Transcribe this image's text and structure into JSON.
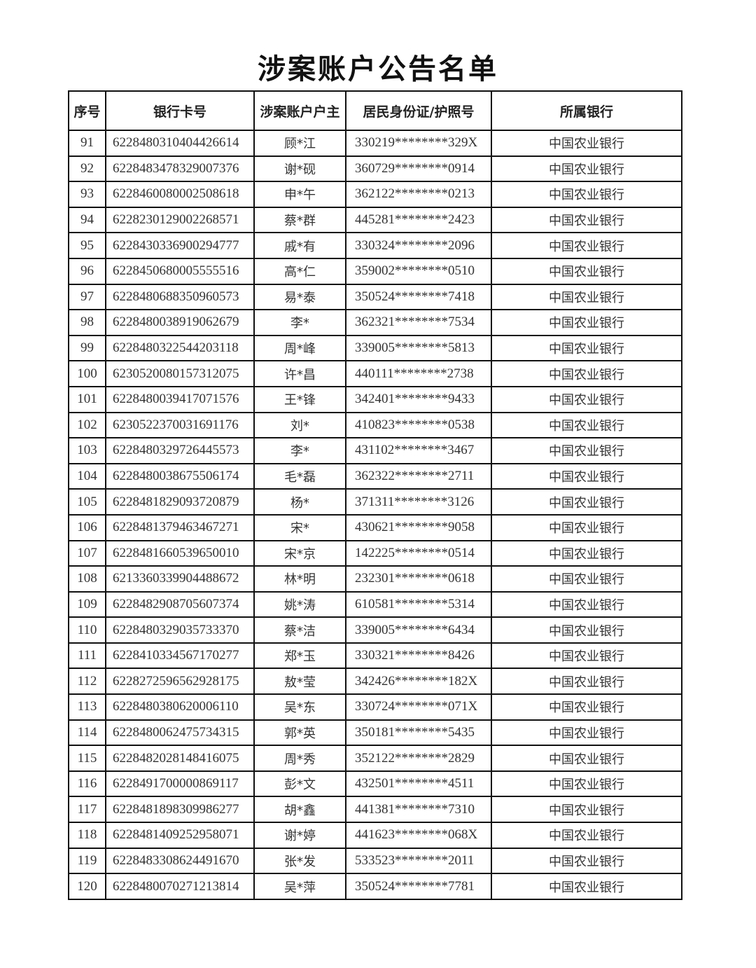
{
  "title": "涉案账户公告名单",
  "table": {
    "headers": [
      "序号",
      "银行卡号",
      "涉案账户户主",
      "居民身份证/护照号",
      "所属银行"
    ],
    "rows": [
      [
        "91",
        "6228480310404426614",
        "顾*江",
        "330219********329X",
        "中国农业银行"
      ],
      [
        "92",
        "6228483478329007376",
        "谢*砚",
        "360729********0914",
        "中国农业银行"
      ],
      [
        "93",
        "6228460080002508618",
        "申*午",
        "362122********0213",
        "中国农业银行"
      ],
      [
        "94",
        "6228230129002268571",
        "蔡*群",
        "445281********2423",
        "中国农业银行"
      ],
      [
        "95",
        "6228430336900294777",
        "戚*有",
        "330324********2096",
        "中国农业银行"
      ],
      [
        "96",
        "6228450680005555516",
        "高*仁",
        "359002********0510",
        "中国农业银行"
      ],
      [
        "97",
        "6228480688350960573",
        "易*泰",
        "350524********7418",
        "中国农业银行"
      ],
      [
        "98",
        "6228480038919062679",
        "李*",
        "362321********7534",
        "中国农业银行"
      ],
      [
        "99",
        "6228480322544203118",
        "周*峰",
        "339005********5813",
        "中国农业银行"
      ],
      [
        "100",
        "6230520080157312075",
        "许*昌",
        "440111********2738",
        "中国农业银行"
      ],
      [
        "101",
        "6228480039417071576",
        "王*锋",
        "342401********9433",
        "中国农业银行"
      ],
      [
        "102",
        "6230522370031691176",
        "刘*",
        "410823********0538",
        "中国农业银行"
      ],
      [
        "103",
        "6228480329726445573",
        "李*",
        "431102********3467",
        "中国农业银行"
      ],
      [
        "104",
        "6228480038675506174",
        "毛*磊",
        "362322********2711",
        "中国农业银行"
      ],
      [
        "105",
        "6228481829093720879",
        "杨*",
        "371311********3126",
        "中国农业银行"
      ],
      [
        "106",
        "6228481379463467271",
        "宋*",
        "430621********9058",
        "中国农业银行"
      ],
      [
        "107",
        "6228481660539650010",
        "宋*京",
        "142225********0514",
        "中国农业银行"
      ],
      [
        "108",
        "6213360339904488672",
        "林*明",
        "232301********0618",
        "中国农业银行"
      ],
      [
        "109",
        "6228482908705607374",
        "姚*涛",
        "610581********5314",
        "中国农业银行"
      ],
      [
        "110",
        "6228480329035733370",
        "蔡*洁",
        "339005********6434",
        "中国农业银行"
      ],
      [
        "111",
        "6228410334567170277",
        "郑*玉",
        "330321********8426",
        "中国农业银行"
      ],
      [
        "112",
        "6228272596562928175",
        "敖*莹",
        "342426********182X",
        "中国农业银行"
      ],
      [
        "113",
        "6228480380620006110",
        "吴*东",
        "330724********071X",
        "中国农业银行"
      ],
      [
        "114",
        "6228480062475734315",
        "郭*英",
        "350181********5435",
        "中国农业银行"
      ],
      [
        "115",
        "6228482028148416075",
        "周*秀",
        "352122********2829",
        "中国农业银行"
      ],
      [
        "116",
        "6228491700000869117",
        "彭*文",
        "432501********4511",
        "中国农业银行"
      ],
      [
        "117",
        "6228481898309986277",
        "胡*鑫",
        "441381********7310",
        "中国农业银行"
      ],
      [
        "118",
        "6228481409252958071",
        "谢*婷",
        "441623********068X",
        "中国农业银行"
      ],
      [
        "119",
        "6228483308624491670",
        "张*发",
        "533523********2011",
        "中国农业银行"
      ],
      [
        "120",
        "6228480070271213814",
        "吴*萍",
        "350524********7781",
        "中国农业银行"
      ]
    ]
  }
}
